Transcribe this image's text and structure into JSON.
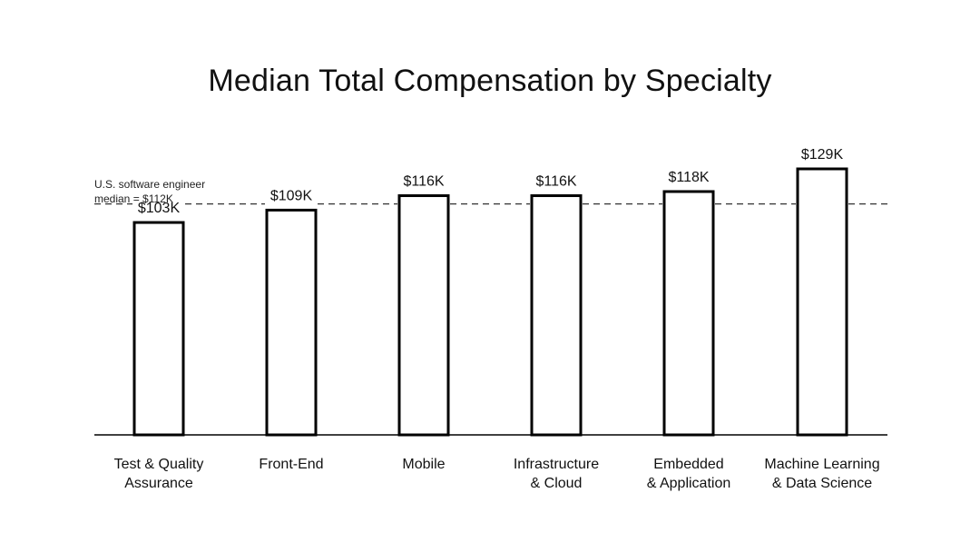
{
  "chart_data": {
    "type": "bar",
    "title": "Median Total Compensation by Specialty",
    "xlabel": "",
    "ylabel": "",
    "categories": [
      [
        "Test & Quality",
        "Assurance"
      ],
      [
        "Front-End"
      ],
      [
        "Mobile"
      ],
      [
        "Infrastructure",
        "& Cloud"
      ],
      [
        "Embedded",
        "& Application"
      ],
      [
        "Machine Learning",
        "& Data Science"
      ]
    ],
    "values": [
      103,
      109,
      116,
      116,
      118,
      129
    ],
    "value_labels": [
      "$103K",
      "$109K",
      "$116K",
      "$116K",
      "$118K",
      "$129K"
    ],
    "reference_line": {
      "value": 112,
      "label": [
        "U.S. software engineer",
        "median = $112K"
      ]
    },
    "ylim": [
      0,
      135
    ],
    "grid": false,
    "legend": "none"
  }
}
